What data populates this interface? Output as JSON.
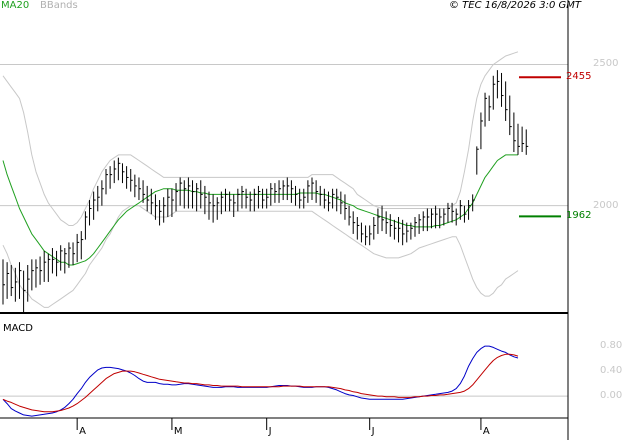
{
  "header": {
    "legend_ma": "MA20",
    "legend_bbands": "BBands",
    "copyright": "© TEC 16/8/2026 3:0 GMT"
  },
  "price_panel": {
    "y_ticks": [
      {
        "value": 2500,
        "label": "2500"
      },
      {
        "value": 2000,
        "label": "2000"
      }
    ],
    "y_range": [
      1620,
      2700
    ],
    "levels": [
      {
        "value": 2455,
        "label": "2455",
        "color": "#c00000"
      },
      {
        "value": 1962,
        "label": "1962",
        "color": "#008000"
      }
    ],
    "colors": {
      "bars": "#000000",
      "ma": "#20a020",
      "bbands": "#c8c8c8",
      "grid": "#c8c8c8"
    }
  },
  "macd_panel": {
    "title": "MACD",
    "y_ticks": [
      {
        "value": 80,
        "label": "0.80"
      },
      {
        "value": 40,
        "label": "0.40"
      },
      {
        "value": 0,
        "label": "0.00"
      }
    ],
    "y_range": [
      -35,
      125
    ],
    "colors": {
      "macd": "#0000c8",
      "signal": "#c00000",
      "zero": "#c8c8c8"
    }
  },
  "x_axis": {
    "months": [
      {
        "label": "A",
        "index": 18
      },
      {
        "label": "M",
        "index": 41
      },
      {
        "label": "J",
        "index": 64
      },
      {
        "label": "J",
        "index": 89
      },
      {
        "label": "A",
        "index": 116
      }
    ]
  },
  "chart_data": {
    "type": "line",
    "title": "",
    "price_bars": [
      [
        1810,
        1650,
        1720
      ],
      [
        1800,
        1670,
        1760
      ],
      [
        1790,
        1680,
        1710
      ],
      [
        1780,
        1660,
        1730
      ],
      [
        1800,
        1670,
        1770
      ],
      [
        1770,
        1620,
        1700
      ],
      [
        1790,
        1660,
        1740
      ],
      [
        1810,
        1700,
        1770
      ],
      [
        1810,
        1710,
        1780
      ],
      [
        1820,
        1720,
        1770
      ],
      [
        1840,
        1730,
        1800
      ],
      [
        1830,
        1730,
        1810
      ],
      [
        1850,
        1760,
        1810
      ],
      [
        1840,
        1750,
        1800
      ],
      [
        1860,
        1770,
        1840
      ],
      [
        1850,
        1760,
        1830
      ],
      [
        1870,
        1780,
        1850
      ],
      [
        1870,
        1790,
        1830
      ],
      [
        1900,
        1800,
        1870
      ],
      [
        1910,
        1810,
        1880
      ],
      [
        1980,
        1880,
        1960
      ],
      [
        2020,
        1930,
        1990
      ],
      [
        2050,
        1950,
        2020
      ],
      [
        2070,
        1980,
        2030
      ],
      [
        2090,
        2000,
        2060
      ],
      [
        2130,
        2040,
        2110
      ],
      [
        2140,
        2060,
        2110
      ],
      [
        2160,
        2080,
        2130
      ],
      [
        2170,
        2090,
        2150
      ],
      [
        2150,
        2080,
        2120
      ],
      [
        2140,
        2060,
        2100
      ],
      [
        2130,
        2050,
        2090
      ],
      [
        2110,
        2030,
        2070
      ],
      [
        2100,
        2020,
        2060
      ],
      [
        2090,
        2010,
        2040
      ],
      [
        2070,
        1980,
        2020
      ],
      [
        2060,
        1970,
        2010
      ],
      [
        2040,
        1950,
        2000
      ],
      [
        2020,
        1930,
        1980
      ],
      [
        2030,
        1940,
        2000
      ],
      [
        2060,
        1960,
        2030
      ],
      [
        2060,
        1960,
        2020
      ],
      [
        2080,
        1980,
        2050
      ],
      [
        2100,
        2000,
        2080
      ],
      [
        2090,
        1990,
        2060
      ],
      [
        2100,
        1990,
        2070
      ],
      [
        2090,
        1990,
        2050
      ],
      [
        2080,
        1980,
        2060
      ],
      [
        2090,
        1990,
        2040
      ],
      [
        2070,
        1970,
        2030
      ],
      [
        2050,
        1950,
        2010
      ],
      [
        2040,
        1940,
        2000
      ],
      [
        2030,
        1950,
        2010
      ],
      [
        2050,
        1970,
        2030
      ],
      [
        2060,
        1980,
        2040
      ],
      [
        2050,
        1980,
        2020
      ],
      [
        2040,
        1960,
        2010
      ],
      [
        2060,
        1980,
        2040
      ],
      [
        2070,
        1990,
        2050
      ],
      [
        2060,
        1990,
        2030
      ],
      [
        2050,
        1980,
        2020
      ],
      [
        2060,
        1980,
        2040
      ],
      [
        2070,
        1990,
        2050
      ],
      [
        2060,
        1990,
        2020
      ],
      [
        2060,
        1990,
        2030
      ],
      [
        2080,
        2000,
        2060
      ],
      [
        2080,
        2010,
        2050
      ],
      [
        2090,
        2010,
        2060
      ],
      [
        2090,
        2020,
        2070
      ],
      [
        2100,
        2020,
        2070
      ],
      [
        2090,
        2010,
        2060
      ],
      [
        2070,
        2000,
        2040
      ],
      [
        2060,
        1990,
        2020
      ],
      [
        2060,
        1990,
        2030
      ],
      [
        2090,
        2010,
        2070
      ],
      [
        2100,
        2020,
        2080
      ],
      [
        2090,
        2010,
        2050
      ],
      [
        2070,
        2000,
        2040
      ],
      [
        2060,
        1990,
        2020
      ],
      [
        2050,
        1980,
        2010
      ],
      [
        2060,
        1990,
        2040
      ],
      [
        2060,
        1980,
        2030
      ],
      [
        2050,
        1970,
        2010
      ],
      [
        2040,
        1950,
        1990
      ],
      [
        2000,
        1930,
        1960
      ],
      [
        1980,
        1900,
        1940
      ],
      [
        1960,
        1880,
        1930
      ],
      [
        1940,
        1870,
        1900
      ],
      [
        1930,
        1860,
        1890
      ],
      [
        1930,
        1860,
        1900
      ],
      [
        1960,
        1880,
        1930
      ],
      [
        1990,
        1900,
        1960
      ],
      [
        2000,
        1910,
        1950
      ],
      [
        1980,
        1900,
        1940
      ],
      [
        1970,
        1890,
        1930
      ],
      [
        1950,
        1880,
        1920
      ],
      [
        1960,
        1870,
        1920
      ],
      [
        1950,
        1860,
        1900
      ],
      [
        1940,
        1870,
        1910
      ],
      [
        1940,
        1880,
        1920
      ],
      [
        1960,
        1890,
        1940
      ],
      [
        1970,
        1900,
        1950
      ],
      [
        1980,
        1910,
        1960
      ],
      [
        1990,
        1910,
        1960
      ],
      [
        1990,
        1920,
        1970
      ],
      [
        2000,
        1920,
        1970
      ],
      [
        1990,
        1920,
        1960
      ],
      [
        1990,
        1930,
        1970
      ],
      [
        2010,
        1940,
        1990
      ],
      [
        2010,
        1940,
        1980
      ],
      [
        1990,
        1930,
        1970
      ],
      [
        2020,
        1950,
        2000
      ],
      [
        2000,
        1940,
        1970
      ],
      [
        2020,
        1950,
        2000
      ],
      [
        2040,
        1980,
        2020
      ],
      [
        2210,
        2110,
        2200
      ],
      [
        2330,
        2200,
        2300
      ],
      [
        2400,
        2280,
        2380
      ],
      [
        2390,
        2300,
        2350
      ],
      [
        2460,
        2340,
        2430
      ],
      [
        2480,
        2380,
        2440
      ],
      [
        2470,
        2350,
        2390
      ],
      [
        2440,
        2300,
        2340
      ],
      [
        2390,
        2250,
        2280
      ],
      [
        2330,
        2190,
        2230
      ],
      [
        2290,
        2180,
        2210
      ],
      [
        2280,
        2190,
        2220
      ],
      [
        2270,
        2180,
        2210
      ]
    ],
    "series": [
      {
        "name": "MA20",
        "values": [
          2160,
          2110,
          2070,
          2030,
          1990,
          1960,
          1930,
          1900,
          1880,
          1860,
          1840,
          1830,
          1820,
          1810,
          1800,
          1800,
          1790,
          1790,
          1795,
          1800,
          1805,
          1815,
          1830,
          1850,
          1870,
          1890,
          1910,
          1930,
          1950,
          1965,
          1980,
          1990,
          2000,
          2010,
          2020,
          2030,
          2040,
          2050,
          2055,
          2060,
          2060,
          2060,
          2055,
          2055,
          2055,
          2055,
          2050,
          2050,
          2045,
          2045,
          2040,
          2040,
          2040,
          2040,
          2040,
          2040,
          2040,
          2040,
          2040,
          2040,
          2040,
          2040,
          2040,
          2040,
          2040,
          2040,
          2040,
          2040,
          2040,
          2040,
          2040,
          2040,
          2045,
          2045,
          2045,
          2045,
          2045,
          2040,
          2040,
          2035,
          2030,
          2025,
          2020,
          2010,
          2005,
          2000,
          1990,
          1985,
          1980,
          1975,
          1970,
          1965,
          1960,
          1955,
          1950,
          1945,
          1940,
          1935,
          1930,
          1930,
          1925,
          1925,
          1925,
          1925,
          1925,
          1930,
          1930,
          1935,
          1940,
          1945,
          1950,
          1960,
          1970,
          1990,
          2010,
          2040,
          2070,
          2100,
          2120,
          2140,
          2160,
          2170,
          2180,
          2180,
          2180,
          2180
        ]
      }
    ],
    "bbands_upper": [
      2460,
      2440,
      2420,
      2400,
      2380,
      2330,
      2260,
      2180,
      2120,
      2080,
      2040,
      2010,
      1990,
      1970,
      1950,
      1940,
      1930,
      1930,
      1940,
      1960,
      1990,
      2020,
      2060,
      2090,
      2120,
      2140,
      2160,
      2170,
      2180,
      2180,
      2180,
      2180,
      2170,
      2160,
      2150,
      2140,
      2130,
      2120,
      2110,
      2100,
      2100,
      2100,
      2100,
      2100,
      2100,
      2100,
      2100,
      2100,
      2100,
      2100,
      2100,
      2100,
      2100,
      2100,
      2100,
      2100,
      2100,
      2100,
      2100,
      2100,
      2100,
      2100,
      2100,
      2100,
      2100,
      2100,
      2100,
      2100,
      2100,
      2100,
      2100,
      2100,
      2100,
      2100,
      2100,
      2110,
      2110,
      2110,
      2110,
      2110,
      2110,
      2100,
      2090,
      2080,
      2070,
      2060,
      2040,
      2030,
      2020,
      2010,
      2000,
      1995,
      1990,
      1990,
      1990,
      1990,
      1990,
      1990,
      1990,
      1990,
      1990,
      1990,
      1990,
      1990,
      1990,
      1990,
      1990,
      1990,
      1990,
      2000,
      2010,
      2050,
      2120,
      2200,
      2300,
      2380,
      2430,
      2460,
      2480,
      2500,
      2510,
      2520,
      2530,
      2535,
      2540,
      2545
    ],
    "bbands_lower": [
      1860,
      1830,
      1790,
      1760,
      1720,
      1700,
      1690,
      1670,
      1660,
      1650,
      1640,
      1640,
      1650,
      1660,
      1670,
      1680,
      1690,
      1700,
      1720,
      1740,
      1760,
      1790,
      1810,
      1830,
      1850,
      1880,
      1900,
      1930,
      1960,
      1980,
      1990,
      2000,
      2000,
      2000,
      1990,
      1980,
      1970,
      1960,
      1960,
      1960,
      1960,
      1970,
      1980,
      1980,
      1980,
      1980,
      1980,
      1980,
      1980,
      1980,
      1980,
      1980,
      1980,
      1980,
      1980,
      1980,
      1980,
      1980,
      1980,
      1980,
      1980,
      1980,
      1980,
      1980,
      1980,
      1980,
      1980,
      1980,
      1980,
      1980,
      1980,
      1980,
      1980,
      1980,
      1980,
      1980,
      1970,
      1960,
      1950,
      1940,
      1930,
      1920,
      1910,
      1900,
      1890,
      1880,
      1870,
      1860,
      1850,
      1840,
      1830,
      1825,
      1820,
      1815,
      1815,
      1815,
      1815,
      1820,
      1825,
      1830,
      1840,
      1850,
      1855,
      1860,
      1865,
      1870,
      1875,
      1880,
      1885,
      1890,
      1890,
      1860,
      1820,
      1780,
      1740,
      1710,
      1690,
      1680,
      1680,
      1690,
      1710,
      1720,
      1740,
      1750,
      1760,
      1770
    ],
    "macd": [
      -5,
      -12,
      -20,
      -24,
      -27,
      -30,
      -31,
      -32,
      -31,
      -30,
      -29,
      -28,
      -27,
      -25,
      -22,
      -18,
      -12,
      -5,
      4,
      12,
      22,
      30,
      36,
      42,
      45,
      46,
      46,
      45,
      44,
      42,
      40,
      37,
      33,
      28,
      24,
      22,
      22,
      22,
      20,
      19,
      19,
      18,
      18,
      19,
      20,
      20,
      19,
      18,
      17,
      16,
      15,
      14,
      14,
      14,
      15,
      15,
      15,
      14,
      14,
      14,
      14,
      14,
      14,
      14,
      14,
      15,
      16,
      17,
      17,
      17,
      16,
      16,
      15,
      14,
      14,
      14,
      15,
      15,
      15,
      14,
      12,
      10,
      7,
      4,
      2,
      1,
      -1,
      -3,
      -4,
      -5,
      -5,
      -5,
      -5,
      -5,
      -5,
      -5,
      -5,
      -5,
      -4,
      -3,
      -2,
      -1,
      0,
      1,
      2,
      3,
      4,
      5,
      6,
      8,
      12,
      20,
      32,
      48,
      60,
      70,
      76,
      80,
      80,
      78,
      75,
      72,
      70,
      66,
      63,
      61
    ],
    "signal": [
      -5,
      -8,
      -10,
      -13,
      -16,
      -18,
      -20,
      -22,
      -23,
      -24,
      -25,
      -25,
      -25,
      -24,
      -23,
      -21,
      -19,
      -16,
      -12,
      -7,
      -2,
      4,
      10,
      16,
      22,
      28,
      32,
      36,
      38,
      40,
      40,
      40,
      39,
      37,
      35,
      33,
      31,
      29,
      27,
      26,
      25,
      24,
      23,
      22,
      21,
      21,
      20,
      20,
      19,
      18,
      18,
      17,
      17,
      16,
      16,
      16,
      16,
      16,
      15,
      15,
      15,
      15,
      15,
      15,
      15,
      15,
      15,
      15,
      16,
      16,
      16,
      16,
      16,
      15,
      15,
      15,
      15,
      15,
      15,
      15,
      14,
      13,
      12,
      10,
      9,
      7,
      6,
      4,
      3,
      2,
      1,
      0,
      0,
      -1,
      -1,
      -1,
      -2,
      -2,
      -2,
      -2,
      -1,
      -1,
      0,
      0,
      1,
      1,
      2,
      2,
      3,
      4,
      5,
      6,
      8,
      12,
      18,
      26,
      34,
      42,
      50,
      57,
      62,
      65,
      67,
      67,
      66,
      64
    ]
  }
}
